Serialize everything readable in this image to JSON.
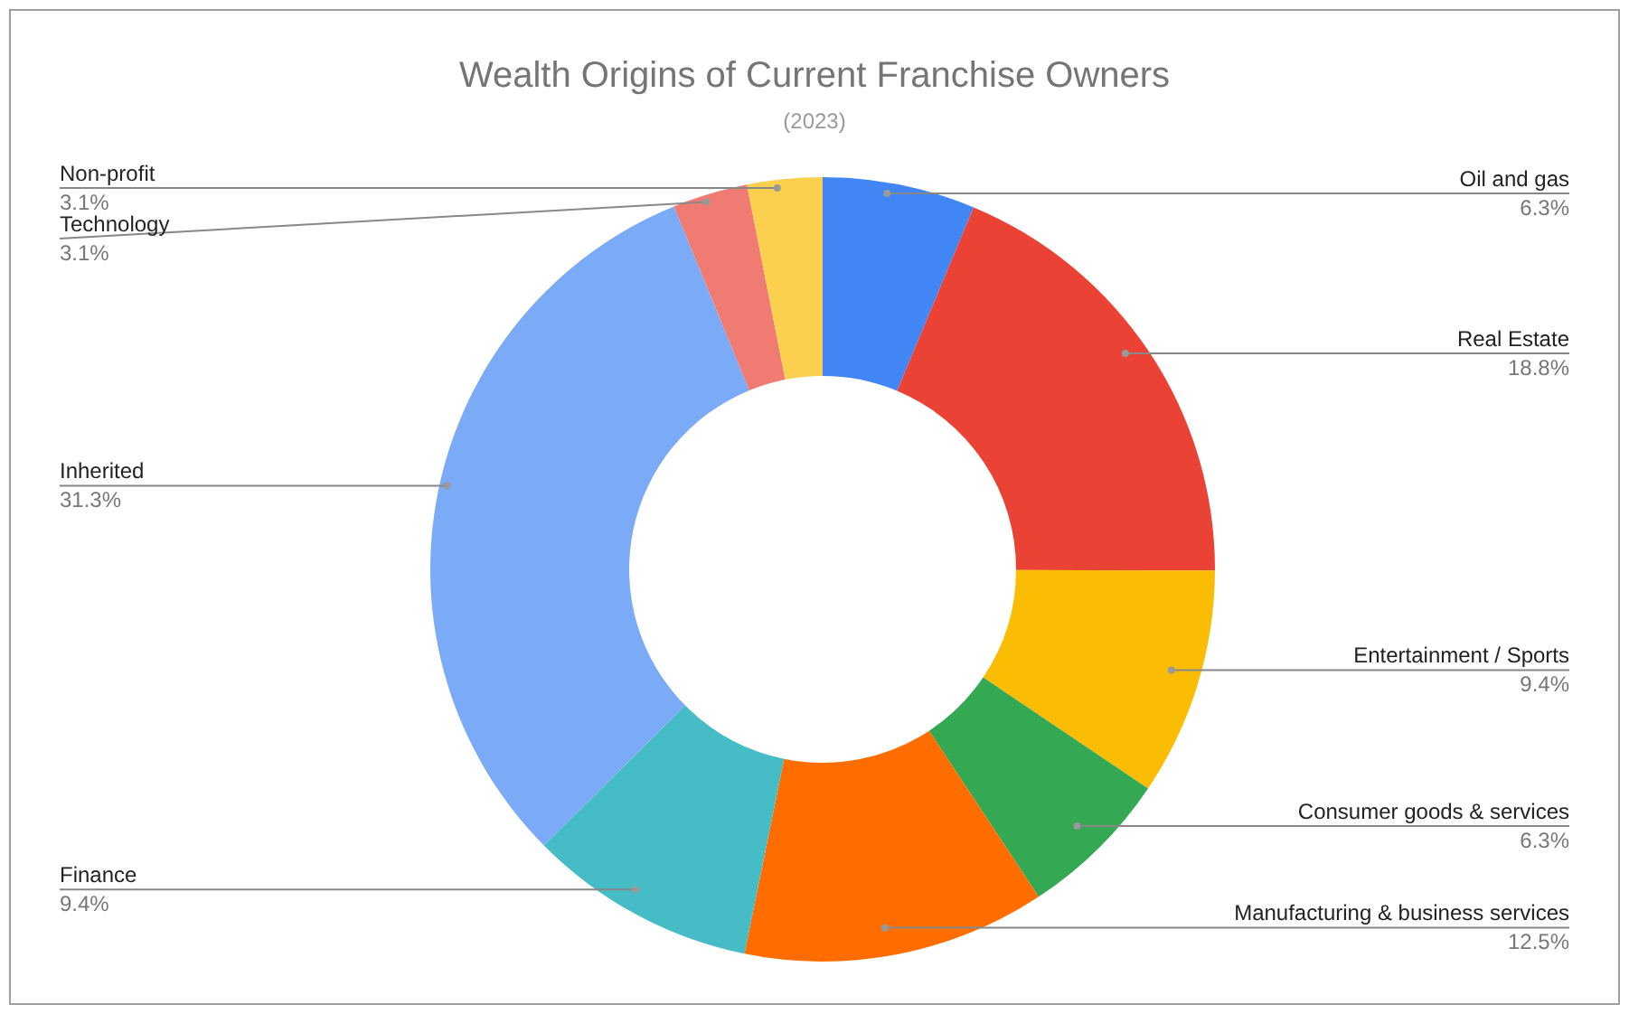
{
  "chart_data": {
    "type": "donut",
    "title": "Wealth Origins of Current Franchise Owners",
    "subtitle": "(2023)",
    "categories": [
      "Oil and gas",
      "Real Estate",
      "Entertainment / Sports",
      "Consumer goods & services",
      "Manufacturing & business services",
      "Finance",
      "Inherited",
      "Technology",
      "Non-profit"
    ],
    "values": [
      6.3,
      18.8,
      9.4,
      6.3,
      12.5,
      9.4,
      31.3,
      3.1,
      3.1
    ],
    "colors": [
      "#4285f4",
      "#ea4335",
      "#fbbc04",
      "#34a853",
      "#ff6d01",
      "#46bdc6",
      "#7baaf7",
      "#f07b72",
      "#fcd04f"
    ],
    "value_labels": [
      "6.3%",
      "18.8%",
      "9.4%",
      "6.3%",
      "12.5%",
      "9.4%",
      "31.3%",
      "3.1%",
      "3.1%"
    ]
  }
}
